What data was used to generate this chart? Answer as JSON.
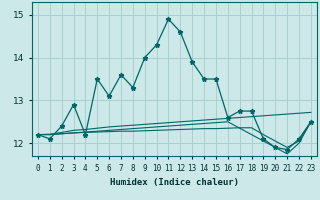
{
  "xlabel": "Humidex (Indice chaleur)",
  "background_color": "#cce8e8",
  "grid_color": "#aad0d0",
  "line_color": "#006666",
  "x_values": [
    0,
    1,
    2,
    3,
    4,
    5,
    6,
    7,
    8,
    9,
    10,
    11,
    12,
    13,
    14,
    15,
    16,
    17,
    18,
    19,
    20,
    21,
    22,
    23
  ],
  "y_main": [
    12.2,
    12.1,
    12.4,
    12.9,
    12.2,
    13.5,
    13.1,
    13.6,
    13.3,
    14.0,
    14.3,
    14.9,
    14.6,
    13.9,
    13.5,
    13.5,
    12.6,
    12.75,
    12.75,
    12.1,
    11.9,
    11.85,
    12.1,
    12.5
  ],
  "y_line2": [
    12.2,
    12.21,
    12.25,
    12.3,
    12.32,
    12.35,
    12.38,
    12.4,
    12.42,
    12.44,
    12.46,
    12.48,
    12.5,
    12.52,
    12.54,
    12.56,
    12.58,
    12.6,
    12.62,
    12.64,
    12.66,
    12.68,
    12.7,
    12.72
  ],
  "y_line3": [
    12.2,
    12.2,
    12.22,
    12.24,
    12.26,
    12.28,
    12.3,
    12.32,
    12.34,
    12.36,
    12.38,
    12.4,
    12.42,
    12.44,
    12.46,
    12.48,
    12.5,
    12.35,
    12.2,
    12.05,
    11.9,
    11.75,
    12.0,
    12.5
  ],
  "y_line4": [
    12.2,
    12.2,
    12.22,
    12.24,
    12.25,
    12.26,
    12.27,
    12.28,
    12.28,
    12.29,
    12.3,
    12.31,
    12.32,
    12.33,
    12.34,
    12.34,
    12.35,
    12.36,
    12.36,
    12.2,
    12.05,
    11.9,
    12.05,
    12.5
  ],
  "ylim": [
    11.7,
    15.3
  ],
  "xlim": [
    -0.5,
    23.5
  ],
  "yticks": [
    12,
    13,
    14,
    15
  ],
  "xlabel_fontsize": 6.5,
  "tick_fontsize": 5.5,
  "ytick_fontsize": 6.5
}
